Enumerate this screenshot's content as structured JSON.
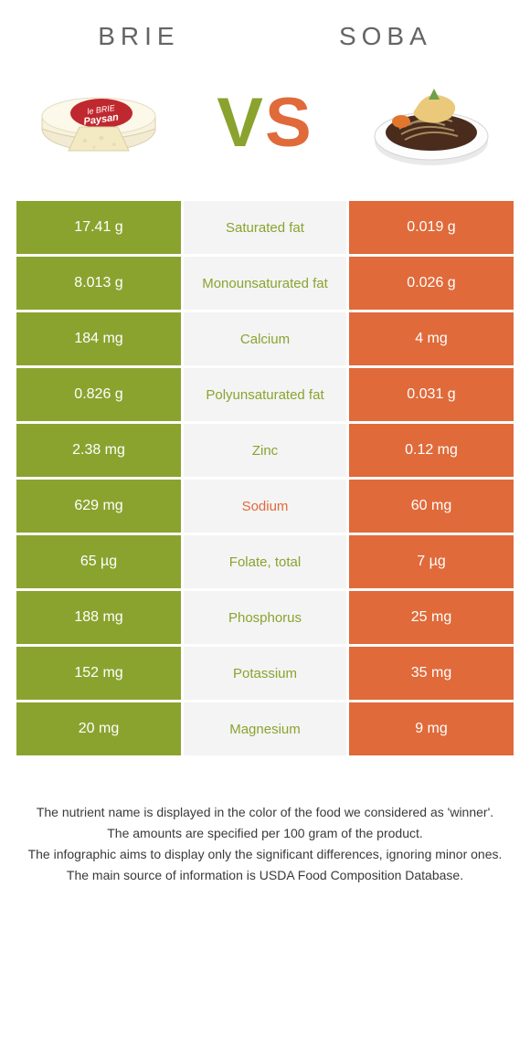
{
  "colors": {
    "left": "#8aa32f",
    "right": "#e06a3a",
    "mid_bg": "#f4f4f4",
    "title": "#646464"
  },
  "header": {
    "left_title": "Brie",
    "right_title": "Soba",
    "vs_v": "V",
    "vs_s": "S"
  },
  "rows": [
    {
      "left": "17.41 g",
      "label": "Saturated fat",
      "right": "0.019 g",
      "winner": "left"
    },
    {
      "left": "8.013 g",
      "label": "Monounsaturated fat",
      "right": "0.026 g",
      "winner": "left"
    },
    {
      "left": "184 mg",
      "label": "Calcium",
      "right": "4 mg",
      "winner": "left"
    },
    {
      "left": "0.826 g",
      "label": "Polyunsaturated fat",
      "right": "0.031 g",
      "winner": "left"
    },
    {
      "left": "2.38 mg",
      "label": "Zinc",
      "right": "0.12 mg",
      "winner": "left"
    },
    {
      "left": "629 mg",
      "label": "Sodium",
      "right": "60 mg",
      "winner": "right"
    },
    {
      "left": "65 µg",
      "label": "Folate, total",
      "right": "7 µg",
      "winner": "left"
    },
    {
      "left": "188 mg",
      "label": "Phosphorus",
      "right": "25 mg",
      "winner": "left"
    },
    {
      "left": "152 mg",
      "label": "Potassium",
      "right": "35 mg",
      "winner": "left"
    },
    {
      "left": "20 mg",
      "label": "Magnesium",
      "right": "9 mg",
      "winner": "left"
    }
  ],
  "footer": {
    "l1": "The nutrient name is displayed in the color of the food we considered as 'winner'.",
    "l2": "The amounts are specified per 100 gram of the product.",
    "l3": "The infographic aims to display only the significant differences, ignoring minor ones.",
    "l4": "The main source of information is USDA Food Composition Database."
  }
}
